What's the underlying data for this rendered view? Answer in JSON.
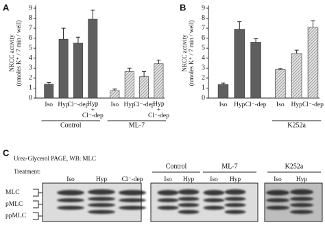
{
  "chart_data": [
    {
      "type": "bar",
      "ylabel": [
        "NKCC activity",
        "(nmoles K⁺ / 7 min / well)"
      ],
      "ylim": [
        0,
        9
      ],
      "yticks": [
        0,
        1,
        2,
        3,
        4,
        5,
        6,
        7,
        8,
        9
      ],
      "groups": [
        {
          "name": "Control",
          "color": "#5f5f5f",
          "fill": "solid",
          "categories": [
            "Iso",
            "Hyp",
            "Cl⁻-dep",
            [
              "Hyp",
              "+",
              "Cl⁻-dep"
            ]
          ],
          "values": [
            1.4,
            5.9,
            5.5,
            7.9
          ],
          "errors": [
            0.15,
            1.1,
            0.6,
            0.9
          ]
        },
        {
          "name": "ML-7",
          "color": "#8a8a8a",
          "fill": "hatched",
          "categories": [
            "Iso",
            "Hyp",
            "Cl⁻-dep",
            [
              "Hyp",
              "+",
              "Cl⁻-dep"
            ]
          ],
          "values": [
            0.75,
            2.65,
            2.15,
            3.45
          ],
          "errors": [
            0.15,
            0.35,
            0.5,
            0.35
          ]
        }
      ]
    },
    {
      "type": "bar",
      "ylabel": [
        "NKCC activity",
        "(nmoles K⁺ / 7 min / well)"
      ],
      "ylim": [
        0,
        9
      ],
      "yticks": [
        0,
        1,
        2,
        3,
        4,
        5,
        6,
        7,
        8,
        9
      ],
      "groups": [
        {
          "color": "#5f5f5f",
          "fill": "solid",
          "categories": [
            "Iso",
            "Hyp",
            "Cl⁻-dep"
          ],
          "values": [
            1.35,
            6.9,
            5.6
          ],
          "errors": [
            0.15,
            0.75,
            0.35
          ]
        },
        {
          "name": "K252a",
          "color": "#8a8a8a",
          "fill": "hatched",
          "categories": [
            "Iso",
            "Hyp",
            "Cl⁻-dep"
          ],
          "values": [
            2.85,
            4.45,
            7.1
          ],
          "errors": [
            0.12,
            0.35,
            0.65
          ]
        }
      ]
    }
  ],
  "panel_labels": [
    "A",
    "B",
    "C"
  ],
  "blot": {
    "title": "Urea-Glycerol PAGE, WB: MLC",
    "treatment_label": "Treatment:",
    "bands": [
      "MLC",
      "pMLC",
      "ppMLC"
    ],
    "blots": [
      {
        "headers": [],
        "lanes": [
          "Iso",
          "Hyp",
          "Cl⁻-dep"
        ]
      },
      {
        "headers": [
          "Control",
          "ML-7"
        ],
        "lanes": [
          "Iso",
          "Hyp",
          "Iso",
          "Hyp"
        ]
      },
      {
        "headers": [
          "K252a"
        ],
        "lanes": [
          "Iso",
          "Hyp"
        ]
      }
    ]
  }
}
